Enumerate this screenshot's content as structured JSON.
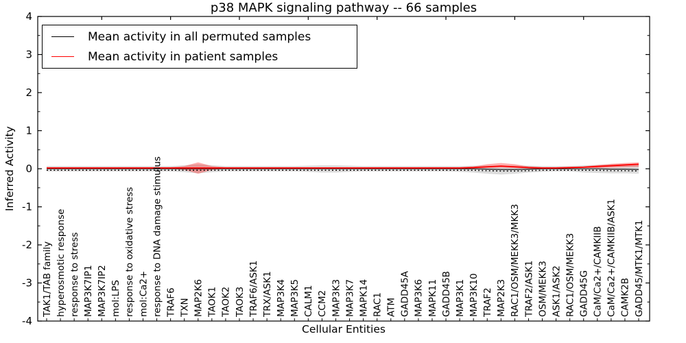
{
  "chart_data": {
    "type": "line",
    "title": "p38 MAPK signaling pathway -- 66 samples",
    "xlabel": "Cellular Entities",
    "ylabel": "Inferred Activity",
    "ylim": [
      -4,
      4
    ],
    "grid": false,
    "legend_position": "upper left",
    "yticks": [
      {
        "value": 4,
        "label": "4"
      },
      {
        "value": 3,
        "label": "3"
      },
      {
        "value": 2,
        "label": "2"
      },
      {
        "value": 1,
        "label": "1"
      },
      {
        "value": 0,
        "label": "0"
      },
      {
        "value": -1,
        "label": "-1"
      },
      {
        "value": -2,
        "label": "-2"
      },
      {
        "value": -3,
        "label": "-3"
      },
      {
        "value": -4,
        "label": "-4"
      }
    ],
    "categories": [
      "TAK1/TAB family",
      "hyperosmotic response",
      "response to stress",
      "MAP3K7IP1",
      "MAP3K7IP2",
      "mol:LPS",
      "response to oxidative stress",
      "mol:Ca2+",
      "response to DNA damage stimulus",
      "TRAF6",
      "TXN",
      "MAP2K6",
      "TAOK1",
      "TAOK2",
      "TAOK3",
      "TRAF6/ASK1",
      "TRX/ASK1",
      "MAP3K4",
      "MAP3K5",
      "CALM1",
      "CCM2",
      "MAP3K3",
      "MAP3K7",
      "MAPK14",
      "RAC1",
      "ATM",
      "GADD45A",
      "MAP3K6",
      "MAPK11",
      "GADD45B",
      "MAP3K1",
      "MAP3K10",
      "TRAF2",
      "MAP2K3",
      "RAC1/OSM/MEKK3/MKK3",
      "TRAF2/ASK1",
      "OSM/MEKK3",
      "ASK1/ASK2",
      "RAC1/OSM/MEKK3",
      "GADD45G",
      "CaM/Ca2+/CAMKIIB",
      "CaM/Ca2+/CAMKIIB/ASK1",
      "CAMK2B",
      "GADD45/MTK1/MTK1"
    ],
    "series": [
      {
        "name": "Mean activity in all permuted samples",
        "color": "#000000",
        "values": [
          0,
          0,
          0,
          0,
          0,
          0,
          0,
          0,
          0,
          0,
          0,
          0,
          0,
          0,
          0,
          0,
          0,
          0,
          0,
          0,
          0,
          0,
          0,
          0,
          0,
          0,
          0,
          0,
          0,
          0,
          0,
          0,
          -0.01,
          -0.02,
          -0.02,
          -0.01,
          0,
          0,
          0,
          0,
          0,
          -0.01,
          -0.01,
          -0.02
        ]
      },
      {
        "name": "Mean activity in patient samples",
        "color": "#ff0000",
        "values": [
          0.02,
          0.02,
          0.02,
          0.02,
          0.02,
          0.02,
          0.02,
          0.02,
          0.02,
          0.02,
          0.02,
          0.02,
          0.02,
          0.02,
          0.02,
          0.02,
          0.02,
          0.02,
          0.02,
          0.02,
          0.02,
          0.02,
          0.02,
          0.02,
          0.02,
          0.02,
          0.02,
          0.02,
          0.02,
          0.02,
          0.02,
          0.03,
          0.05,
          0.07,
          0.05,
          0.03,
          0.02,
          0.02,
          0.03,
          0.04,
          0.06,
          0.08,
          0.1,
          0.12
        ]
      }
    ],
    "bands": [
      {
        "name": "permuted-range",
        "color": "#dcdcdc",
        "upper": [
          0.07,
          0.07,
          0.07,
          0.07,
          0.07,
          0.07,
          0.07,
          0.07,
          0.07,
          0.07,
          0.09,
          0.12,
          0.09,
          0.07,
          0.07,
          0.07,
          0.07,
          0.07,
          0.07,
          0.08,
          0.09,
          0.09,
          0.08,
          0.07,
          0.07,
          0.07,
          0.07,
          0.07,
          0.07,
          0.07,
          0.07,
          0.08,
          0.08,
          0.08,
          0.08,
          0.08,
          0.07,
          0.07,
          0.07,
          0.09,
          0.1,
          0.11,
          0.12,
          0.13
        ],
        "lower": [
          -0.07,
          -0.07,
          -0.07,
          -0.07,
          -0.07,
          -0.07,
          -0.07,
          -0.07,
          -0.07,
          -0.07,
          -0.09,
          -0.12,
          -0.09,
          -0.07,
          -0.07,
          -0.07,
          -0.07,
          -0.07,
          -0.07,
          -0.08,
          -0.1,
          -0.1,
          -0.08,
          -0.07,
          -0.07,
          -0.07,
          -0.07,
          -0.07,
          -0.07,
          -0.07,
          -0.08,
          -0.1,
          -0.13,
          -0.15,
          -0.13,
          -0.1,
          -0.08,
          -0.07,
          -0.07,
          -0.1,
          -0.11,
          -0.12,
          -0.12,
          -0.13
        ]
      },
      {
        "name": "patient-range",
        "color": "rgba(255,0,0,0.32)",
        "upper": [
          0.04,
          0.04,
          0.04,
          0.04,
          0.04,
          0.04,
          0.04,
          0.04,
          0.04,
          0.04,
          0.07,
          0.17,
          0.07,
          0.04,
          0.04,
          0.04,
          0.04,
          0.04,
          0.04,
          0.04,
          0.04,
          0.04,
          0.04,
          0.04,
          0.04,
          0.04,
          0.04,
          0.04,
          0.04,
          0.04,
          0.04,
          0.06,
          0.12,
          0.15,
          0.12,
          0.06,
          0.04,
          0.04,
          0.05,
          0.06,
          0.1,
          0.13,
          0.15,
          0.17
        ],
        "lower": [
          0,
          0,
          0,
          0,
          0,
          0,
          0,
          0,
          0,
          0,
          -0.03,
          -0.13,
          -0.03,
          0,
          0,
          0,
          0,
          0,
          0,
          0,
          0,
          0,
          0,
          0,
          0,
          0,
          0,
          0,
          0,
          0,
          0,
          0.01,
          0.02,
          0.03,
          0.02,
          0.01,
          0,
          0,
          0.01,
          0.02,
          0.02,
          0.03,
          0.04,
          0.05
        ]
      }
    ],
    "layout": {
      "top_tick_indices": [
        4,
        9,
        14,
        19,
        24,
        29,
        34,
        39
      ]
    }
  }
}
